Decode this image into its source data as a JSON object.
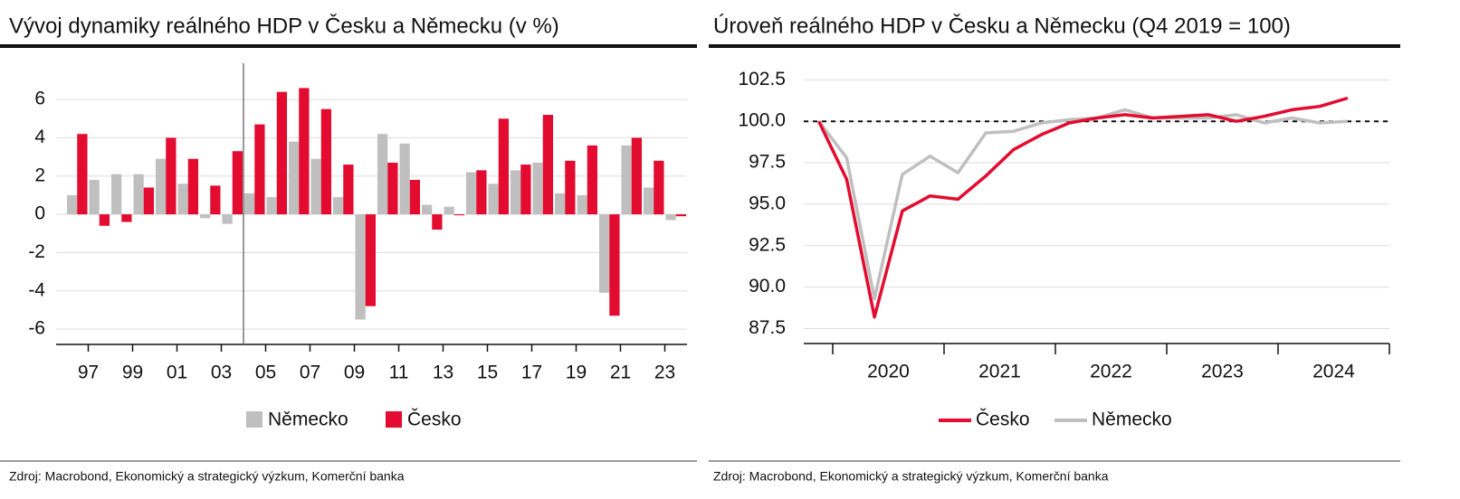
{
  "chart_data": [
    {
      "type": "bar",
      "title": "Vývoj dynamiky reálného HDP v Česku a Německu (v %)",
      "categories": [
        null,
        "97",
        null,
        "99",
        null,
        "01",
        null,
        "03",
        null,
        "05",
        null,
        "07",
        null,
        "09",
        null,
        "11",
        null,
        "13",
        null,
        "15",
        null,
        "17",
        null,
        "19",
        null,
        "21",
        null,
        "23"
      ],
      "series": [
        {
          "name": "Německo",
          "color": "#c0bfbf",
          "values": [
            1.0,
            1.8,
            2.1,
            2.1,
            2.9,
            1.6,
            -0.2,
            -0.5,
            1.1,
            0.9,
            3.8,
            2.9,
            0.9,
            -5.5,
            4.2,
            3.7,
            0.5,
            0.4,
            2.2,
            1.6,
            2.3,
            2.7,
            1.1,
            1.0,
            -4.1,
            3.6,
            1.4,
            -0.3
          ]
        },
        {
          "name": "Česko",
          "color": "#e30b2f",
          "values": [
            4.2,
            -0.6,
            -0.4,
            1.4,
            4.0,
            2.9,
            1.5,
            3.3,
            4.7,
            6.4,
            6.6,
            5.5,
            2.6,
            -4.8,
            2.7,
            1.8,
            -0.8,
            -0.05,
            2.3,
            5.0,
            2.6,
            5.2,
            2.8,
            3.6,
            -5.3,
            4.0,
            2.8,
            -0.1
          ]
        }
      ],
      "ylim": [
        -6.8,
        7.8
      ],
      "yticks": [
        -6,
        -4,
        -2,
        0,
        2,
        4,
        6
      ],
      "grid": true,
      "source": "Zdroj: Macrobond, Ekonomický a strategický výzkum, Komerční banka"
    },
    {
      "type": "line",
      "title": "Úroveň reálného HDP v Česku a Německu (Q4 2019 = 100)",
      "x": [
        2019.875,
        2020.125,
        2020.375,
        2020.625,
        2020.875,
        2021.125,
        2021.375,
        2021.625,
        2021.875,
        2022.125,
        2022.375,
        2022.625,
        2022.875,
        2023.125,
        2023.375,
        2023.625,
        2023.875,
        2024.125,
        2024.375,
        2024.625
      ],
      "series": [
        {
          "name": "Česko",
          "color": "#e30b2f",
          "values": [
            100,
            96.5,
            88.2,
            94.6,
            95.5,
            95.3,
            96.7,
            98.3,
            99.2,
            99.9,
            100.2,
            100.4,
            100.2,
            100.3,
            100.4,
            100.0,
            100.3,
            100.7,
            100.9,
            101.4
          ]
        },
        {
          "name": "Německo",
          "color": "#c0bfbf",
          "values": [
            100,
            97.8,
            89.3,
            96.8,
            97.9,
            96.9,
            99.3,
            99.4,
            99.9,
            100.1,
            100.2,
            100.7,
            100.2,
            100.2,
            100.2,
            100.4,
            99.9,
            100.2,
            99.9,
            100.0
          ]
        }
      ],
      "xlim": [
        2019.74,
        2025
      ],
      "xticks": [
        {
          "value": 2020.5,
          "label": "2020"
        },
        {
          "value": 2021.5,
          "label": "2021"
        },
        {
          "value": 2022.5,
          "label": "2022"
        },
        {
          "value": 2023.5,
          "label": "2023"
        },
        {
          "value": 2024.5,
          "label": "2024"
        }
      ],
      "xtick_marks": [
        2020,
        2021,
        2022,
        2023,
        2024,
        2025
      ],
      "ylim": [
        86.6,
        103.5
      ],
      "yticks": [
        {
          "value": 87.5,
          "label": "87.5"
        },
        {
          "value": 90,
          "label": "90.0"
        },
        {
          "value": 92.5,
          "label": "92.5"
        },
        {
          "value": 95,
          "label": "95.0"
        },
        {
          "value": 97.5,
          "label": "97.5"
        },
        {
          "value": 100,
          "label": "100.0"
        },
        {
          "value": 102.5,
          "label": "102.5"
        }
      ],
      "grid": true,
      "reference_line": 100,
      "source": "Zdroj: Macrobond, Ekonomický a strategický výzkum, Komerční banka"
    }
  ]
}
